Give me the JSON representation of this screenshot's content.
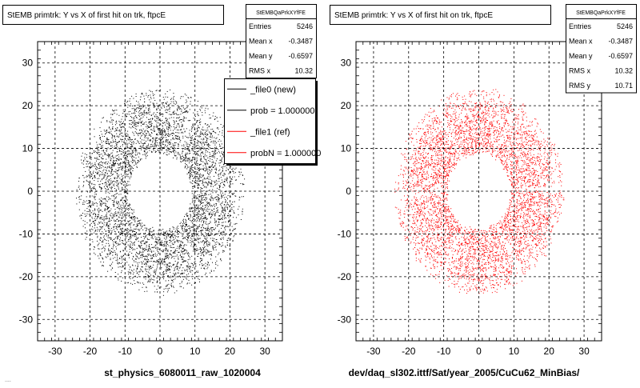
{
  "page": {
    "footer_left": "st_physics_6080011_raw_1020004",
    "footer_right": "dev/daq_sl302.ittf/Sat/year_2005/CuCu62_MinBias/",
    "corner_note": "...."
  },
  "colors": {
    "new": "#000000",
    "ref": "#ff0000",
    "frame": "#000000",
    "grid": "#000000"
  },
  "chart_data": [
    {
      "type": "scatter",
      "title": "StEMB primtrk: Y vs X of first hit on trk, ftpcE",
      "xlim": [
        -35,
        35
      ],
      "ylim": [
        -35,
        35
      ],
      "x_ticks": [
        -30,
        -20,
        -10,
        0,
        10,
        20,
        30
      ],
      "y_ticks": [
        -30,
        -20,
        -10,
        0,
        10,
        20,
        30
      ],
      "grid": true,
      "marker_color": "#000000",
      "distribution": {
        "inner_radius": 9,
        "outer_radius": 24,
        "sectors": 6
      },
      "stats": {
        "title": "StEMBQaPrkXYfFE",
        "rows": [
          {
            "label": "Entries",
            "value": "5246"
          },
          {
            "label": "Mean x",
            "value": "-0.3487"
          },
          {
            "label": "Mean y",
            "value": "-0.6597"
          },
          {
            "label": "RMS x",
            "value": "10.32"
          }
        ]
      },
      "legend": {
        "placement": "top-right",
        "entries": [
          {
            "label": "_file0 (new)",
            "color": "#000000"
          },
          {
            "label": "prob = 1.000000",
            "color": "#000000"
          },
          {
            "label": "_file1 (ref)",
            "color": "#ff0000"
          },
          {
            "label": "probN = 1.000000",
            "color": "#ff0000"
          }
        ]
      }
    },
    {
      "type": "scatter",
      "title": "StEMB primtrk: Y vs X of first hit on trk, ftpcE",
      "xlim": [
        -35,
        35
      ],
      "ylim": [
        -35,
        35
      ],
      "x_ticks": [
        -30,
        -20,
        -10,
        0,
        10,
        20,
        30
      ],
      "y_ticks": [
        -30,
        -20,
        -10,
        0,
        10,
        20,
        30
      ],
      "grid": true,
      "marker_color": "#ff0000",
      "distribution": {
        "inner_radius": 9,
        "outer_radius": 24,
        "sectors": 6
      },
      "stats": {
        "title": "StEMBQaPrkXYfFE",
        "rows": [
          {
            "label": "Entries",
            "value": "5246"
          },
          {
            "label": "Mean x",
            "value": "-0.3487"
          },
          {
            "label": "Mean y",
            "value": "-0.6597"
          },
          {
            "label": "RMS x",
            "value": "10.32"
          },
          {
            "label": "RMS y",
            "value": "10.71"
          }
        ]
      }
    }
  ]
}
